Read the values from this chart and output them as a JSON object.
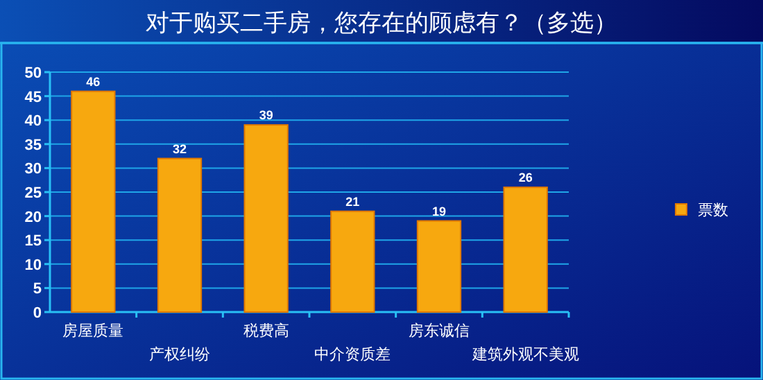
{
  "chart_data": {
    "type": "bar",
    "title": "对于购买二手房，您存在的顾虑有？（多选）",
    "categories": [
      "房屋质量",
      "产权纠纷",
      "税费高",
      "中介资质差",
      "房东诚信",
      "建筑外观不美观"
    ],
    "series": [
      {
        "name": "票数",
        "color": "#f7a80f",
        "values": [
          46,
          32,
          39,
          21,
          19,
          26
        ]
      }
    ],
    "ylim": [
      0,
      50
    ],
    "yticks": [
      0,
      5,
      10,
      15,
      20,
      25,
      30,
      35,
      40,
      45,
      50
    ],
    "grid": "y",
    "legend": "right",
    "data_labels": true
  }
}
